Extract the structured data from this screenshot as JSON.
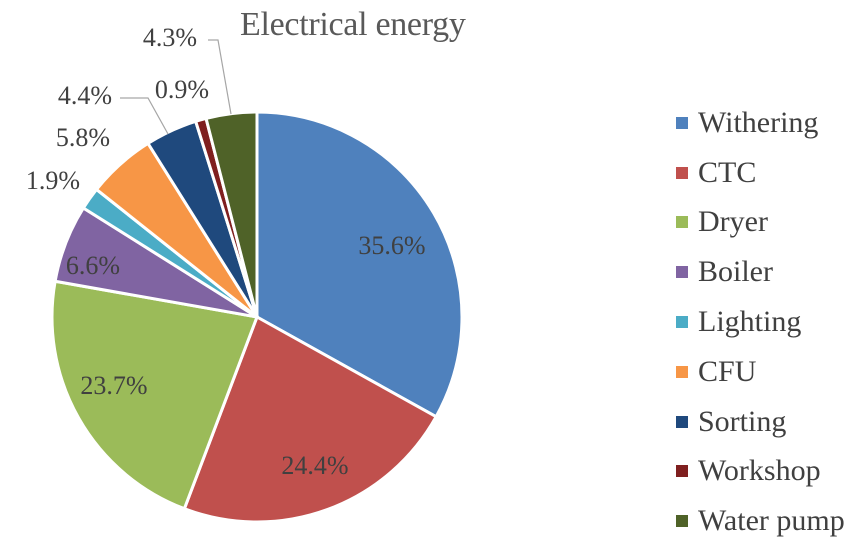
{
  "chart_data": {
    "type": "pie",
    "title": "Electrical energy",
    "categories": [
      "Withering",
      "CTC",
      "Dryer",
      "Boiler",
      "Lighting",
      "CFU",
      "Sorting",
      "Workshop",
      "Water pump"
    ],
    "values": [
      35.6,
      24.4,
      23.7,
      6.6,
      1.9,
      5.8,
      4.4,
      0.9,
      4.3
    ],
    "labels": [
      "35.6%",
      "24.4%",
      "23.7%",
      "6.6%",
      "1.9%",
      "5.8%",
      "4.4%",
      "0.9%",
      "4.3%"
    ],
    "colors": [
      "#4F81BD",
      "#C0504D",
      "#9BBB59",
      "#8064A2",
      "#4BACC6",
      "#F79646",
      "#1F497D",
      "#7F1F1F",
      "#4F6228"
    ],
    "legend_position": "right"
  }
}
